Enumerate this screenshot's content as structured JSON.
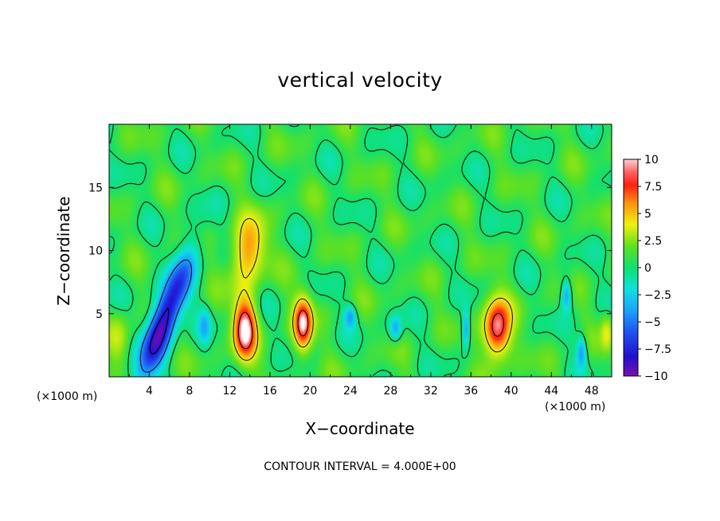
{
  "chart_data": {
    "type": "heatmap",
    "title": "vertical velocity",
    "xlabel": "X−coordinate",
    "ylabel": "Z−coordinate",
    "x_unit_left": "(×1000 m)",
    "x_unit_right": "(×1000 m)",
    "footnote": "CONTOUR INTERVAL = 4.000E+00",
    "xlim": [
      0,
      50
    ],
    "ylim": [
      0,
      20
    ],
    "x_ticks": [
      4,
      8,
      12,
      16,
      20,
      24,
      28,
      32,
      36,
      40,
      44,
      48
    ],
    "x_tick_labels": [
      "4",
      "8",
      "12",
      "16",
      "20",
      "24",
      "28",
      "32",
      "36",
      "40",
      "44",
      "48"
    ],
    "y_ticks": [
      5,
      10,
      15
    ],
    "y_tick_labels": [
      "5",
      "10",
      "15"
    ],
    "colorbar": {
      "range": [
        -10,
        10
      ],
      "ticks": [
        10,
        7.5,
        5,
        2.5,
        0,
        -2.5,
        -5,
        -7.5,
        -10
      ],
      "tick_labels": [
        "10",
        "7.5",
        "5",
        "2.5",
        "0",
        "−2.5",
        "−5",
        "−7.5",
        "−10"
      ]
    },
    "features": [
      {
        "kind": "downdraft",
        "x": 5.5,
        "z": 4.5,
        "value": -10,
        "sx": 1.4,
        "sz": 5,
        "tilt": 0.45
      },
      {
        "kind": "updraft",
        "x": 13.5,
        "z": 3.8,
        "value": 10,
        "sx": 1.1,
        "sz": 2.4,
        "tilt": 0
      },
      {
        "kind": "updraft",
        "x": 13.8,
        "z": 10,
        "value": 5.5,
        "sx": 1.7,
        "sz": 2.6,
        "tilt": 0.15
      },
      {
        "kind": "updraft",
        "x": 19.3,
        "z": 4.2,
        "value": 9,
        "sx": 0.9,
        "sz": 2.1,
        "tilt": 0
      },
      {
        "kind": "updraft",
        "x": 38.6,
        "z": 3.8,
        "value": 9.5,
        "sx": 1.3,
        "sz": 2.3,
        "tilt": 0
      },
      {
        "kind": "downdraft",
        "x": 24,
        "z": 4.8,
        "value": -4,
        "sx": 0.6,
        "sz": 0.9,
        "tilt": 0
      },
      {
        "kind": "downdraft",
        "x": 28.5,
        "z": 3.8,
        "value": -4,
        "sx": 0.6,
        "sz": 1,
        "tilt": 0
      },
      {
        "kind": "downdraft",
        "x": 35.5,
        "z": 3.8,
        "value": -4.5,
        "sx": 0.4,
        "sz": 1.5,
        "tilt": 0
      },
      {
        "kind": "downdraft",
        "x": 45.5,
        "z": 6.5,
        "value": -4.5,
        "sx": 0.5,
        "sz": 1.2,
        "tilt": 0
      },
      {
        "kind": "downdraft",
        "x": 47,
        "z": 2,
        "value": -4.5,
        "sx": 0.5,
        "sz": 1.3,
        "tilt": 0
      },
      {
        "kind": "downdraft",
        "x": 9.5,
        "z": 4,
        "value": -3,
        "sx": 0.6,
        "sz": 1.5,
        "tilt": 0
      },
      {
        "kind": "updraft",
        "x": 49.5,
        "z": 3.5,
        "value": 3,
        "sx": 0.6,
        "sz": 1.5,
        "tilt": 0
      },
      {
        "kind": "updraft",
        "x": 1,
        "z": 3,
        "value": 2.5,
        "sx": 1,
        "sz": 2,
        "tilt": 0
      }
    ],
    "grid": false
  }
}
